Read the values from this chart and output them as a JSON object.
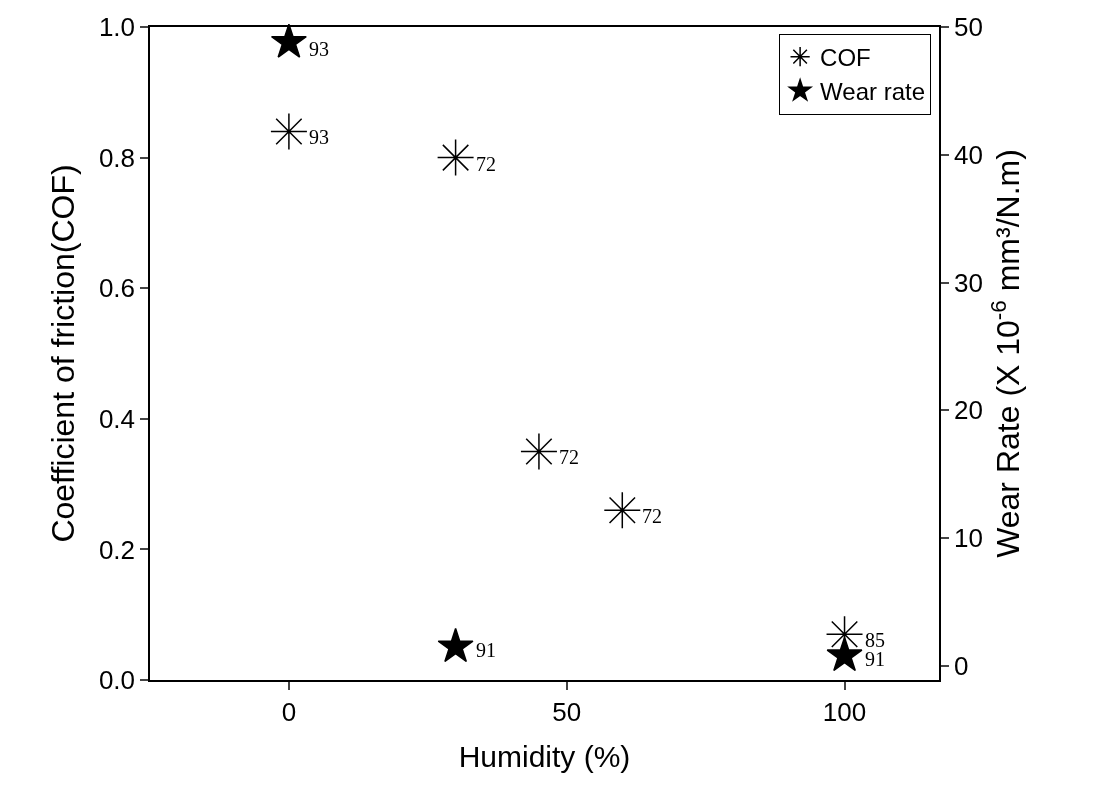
{
  "chart_data": {
    "type": "scatter",
    "xlabel": "Humidity (%)",
    "ylabel": "Coefficient of friction(COF)",
    "y2label": "Wear Rate (X 10$^{-6}$ mm³/N.m)",
    "series": [
      {
        "name": "COF",
        "color": "#000000",
        "marker": "cross",
        "x": [
          0,
          30,
          45,
          60,
          100
        ],
        "values": [
          0.84,
          0.8,
          0.35,
          0.26,
          0.07
        ]
      },
      {
        "name": "Wear rate",
        "color": "#000000",
        "marker": "star",
        "axis": "y2",
        "x": [
          0,
          30,
          100
        ],
        "values": [
          48.8,
          1.5,
          0.8
        ]
      }
    ],
    "annotations": [
      {
        "text": "93",
        "x": 0,
        "y": 0.84
      },
      {
        "text": "72",
        "x": 30,
        "y": 0.8
      },
      {
        "text": "72",
        "x": 45,
        "y": 0.35
      },
      {
        "text": "72",
        "x": 60,
        "y": 0.26
      },
      {
        "text": "85",
        "x": 100,
        "y": 0.07
      },
      {
        "text": "93",
        "x": 0,
        "y": 0.976
      },
      {
        "text": "91",
        "x": 30,
        "y": 0.055
      },
      {
        "text": "91",
        "x": 100,
        "y": 0.042
      }
    ],
    "xlim": [
      -25,
      117
    ],
    "xticks": [
      0,
      50,
      100
    ],
    "ylim": [
      0,
      1
    ],
    "yticks": [
      {
        "value": 0,
        "label": "0.0"
      },
      0.2,
      0.4,
      0.6,
      0.8,
      {
        "value": 1,
        "label": "1.0"
      }
    ],
    "y2lim": [
      -1.1,
      50
    ],
    "y2ticks": [
      0,
      10,
      20,
      30,
      40,
      50
    ],
    "legend": "top right"
  }
}
